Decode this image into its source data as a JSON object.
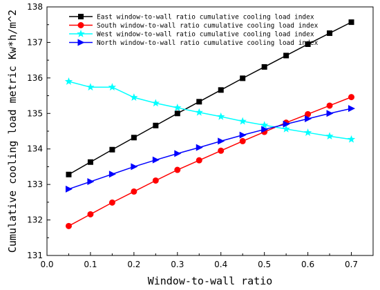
{
  "chart_data": {
    "type": "line",
    "title": "",
    "xlabel": "Window-to-wall ratio",
    "ylabel": "Cumulative cooling load metric Kw*h/m^2",
    "xlim": [
      0.0,
      0.75
    ],
    "ylim": [
      131,
      138
    ],
    "xticks": [
      0.0,
      0.1,
      0.2,
      0.3,
      0.4,
      0.5,
      0.6,
      0.7
    ],
    "xtick_labels": [
      "0.0",
      "0.1",
      "0.2",
      "0.3",
      "0.4",
      "0.5",
      "0.6",
      "0.7"
    ],
    "yticks": [
      131,
      132,
      133,
      134,
      135,
      136,
      137,
      138
    ],
    "ytick_labels": [
      "131",
      "132",
      "133",
      "134",
      "135",
      "136",
      "137",
      "138"
    ],
    "grid": false,
    "legend_position": "top-left",
    "x": [
      0.05,
      0.1,
      0.15,
      0.2,
      0.25,
      0.3,
      0.35,
      0.4,
      0.45,
      0.5,
      0.55,
      0.6,
      0.65,
      0.7
    ],
    "series": [
      {
        "name": "East window-to-wall ratio cumulative cooling load index",
        "color": "#000000",
        "marker": "square",
        "values": [
          133.28,
          133.63,
          133.98,
          134.32,
          134.66,
          135.0,
          135.33,
          135.66,
          135.99,
          136.31,
          136.63,
          136.95,
          137.26,
          137.57
        ]
      },
      {
        "name": "South window-to-wall ratio cumulative cooling load index",
        "color": "#ff0000",
        "marker": "circle",
        "values": [
          131.83,
          132.16,
          132.49,
          132.8,
          133.11,
          133.41,
          133.68,
          133.95,
          134.22,
          134.48,
          134.74,
          134.98,
          135.22,
          135.46
        ]
      },
      {
        "name": "West window-to-wall ratio cumulative cooling load index",
        "color": "#00ffff",
        "marker": "star",
        "values": [
          135.9,
          135.74,
          135.74,
          135.45,
          135.29,
          135.16,
          135.03,
          134.91,
          134.78,
          134.67,
          134.56,
          134.46,
          134.36,
          134.27
        ]
      },
      {
        "name": "North window-to-wall ratio cumulative cooling load index",
        "color": "#0000ff",
        "marker": "triangle-right",
        "values": [
          132.87,
          133.08,
          133.29,
          133.5,
          133.69,
          133.87,
          134.04,
          134.22,
          134.39,
          134.55,
          134.7,
          134.85,
          135.0,
          135.14
        ]
      }
    ]
  }
}
